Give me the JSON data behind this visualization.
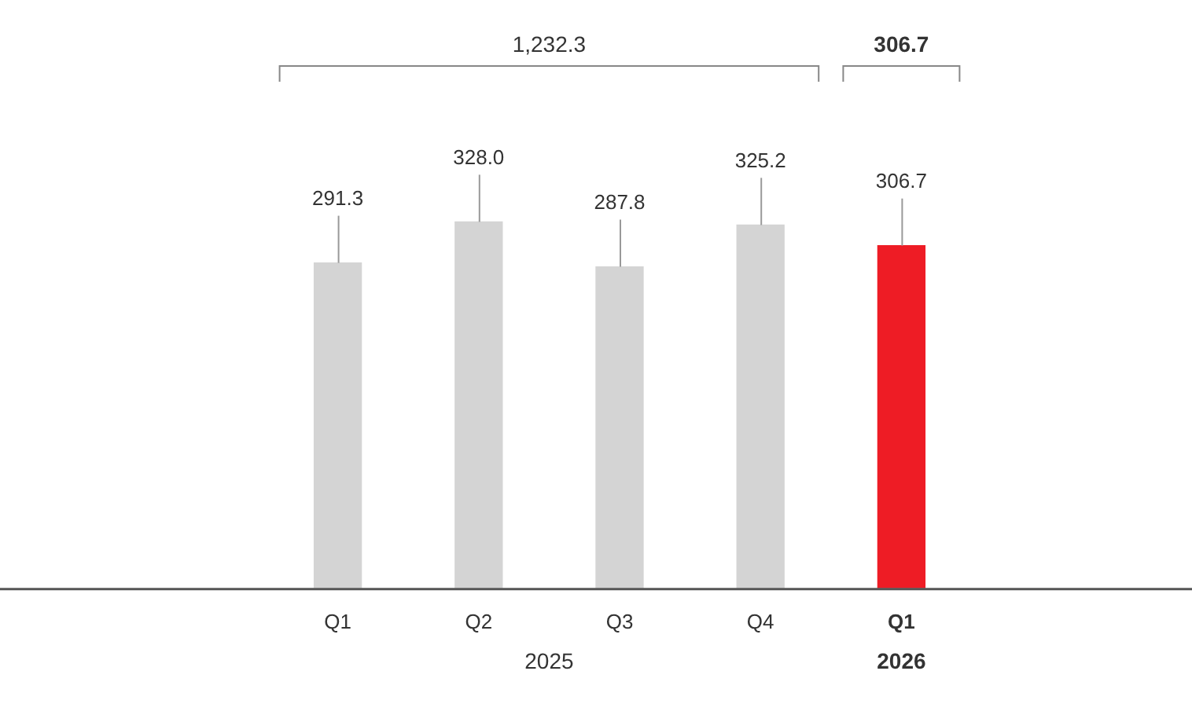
{
  "chart_data": {
    "type": "bar",
    "categories": [
      "Q1",
      "Q2",
      "Q3",
      "Q4",
      "Q1"
    ],
    "values": [
      291.3,
      328.0,
      287.8,
      325.2,
      306.7
    ],
    "colors": [
      "#d4d4d4",
      "#d4d4d4",
      "#d4d4d4",
      "#d4d4d4",
      "#ee1c25"
    ],
    "value_labels": [
      "291.3",
      "328.0",
      "287.8",
      "325.2",
      "306.7"
    ],
    "annotations": [
      "1,232.3",
      "306.7",
      "2025",
      "2026"
    ],
    "grid": false,
    "legend": false,
    "tick_labels": "x"
  }
}
